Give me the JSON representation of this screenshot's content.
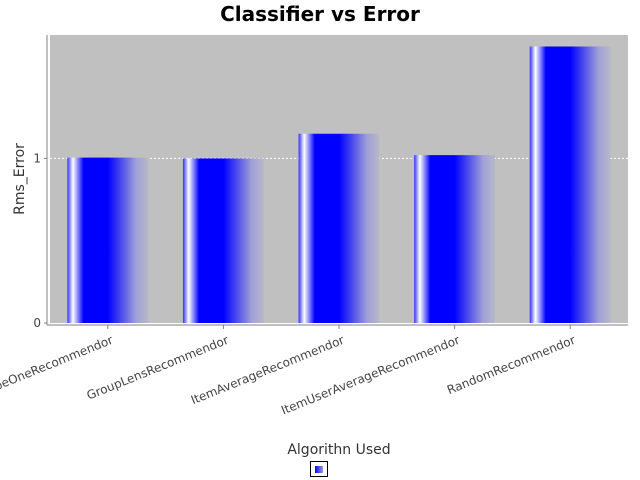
{
  "chart_data": {
    "type": "bar",
    "title": "Classifier vs Error",
    "xlabel": "Algorithn Used",
    "ylabel": "Rms_Error",
    "categories": [
      "SlopeOneRecommendor",
      "GroupLensRecommendor",
      "ItemAverageRecommendor",
      "ItemUserAverageRecommendor",
      "RandomRecommendor"
    ],
    "series": [
      {
        "values": [
          1.005,
          1.0,
          1.15,
          1.02,
          1.68
        ]
      }
    ],
    "ylim": [
      0,
      1.75
    ],
    "yticks": [
      0,
      1
    ],
    "grid": true,
    "legend": "bottom",
    "colors": {
      "plot_background": "#c0c0c0",
      "bar": "#0000ff",
      "bar_highlight": "#ffffff",
      "bar_fade": "#b0b0c8",
      "gridline": "#ffffff"
    }
  }
}
